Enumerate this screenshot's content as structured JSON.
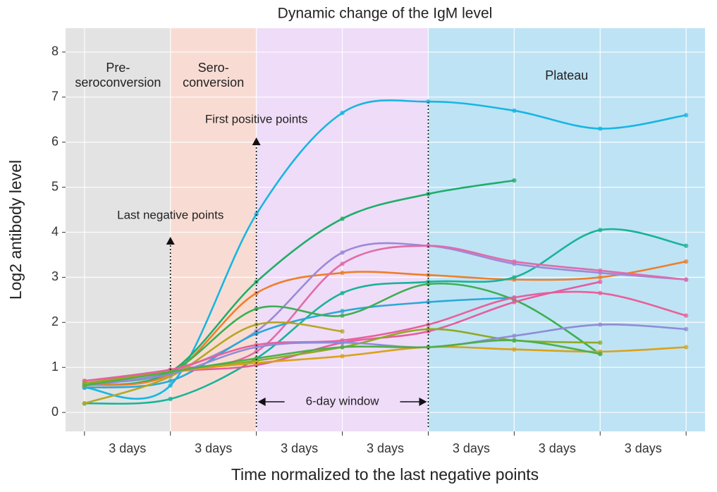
{
  "chart_data": {
    "type": "line",
    "title": "Dynamic change of the IgM level",
    "x_label": "Time normalized to the last negative points",
    "y_label": "Log2 antibody level",
    "x": [
      0,
      1,
      2,
      3,
      4,
      5,
      6,
      7
    ],
    "xlim": [
      -0.22,
      7.22
    ],
    "xticks": [
      {
        "value": 0.5,
        "label": "3 days"
      },
      {
        "value": 1.5,
        "label": "3 days"
      },
      {
        "value": 2.5,
        "label": "3 days"
      },
      {
        "value": 3.5,
        "label": "3 days"
      },
      {
        "value": 4.5,
        "label": "3 days"
      },
      {
        "value": 5.5,
        "label": "3 days"
      },
      {
        "value": 6.5,
        "label": "3 days"
      }
    ],
    "minor_xticks": [
      0,
      1,
      2,
      3,
      4,
      5,
      6,
      7
    ],
    "ylim": [
      -0.42,
      8.53
    ],
    "yticks": [
      0,
      1,
      2,
      3,
      4,
      5,
      6,
      7,
      8
    ],
    "grid": true,
    "regions": [
      {
        "label": [
          "Pre-",
          "seroconversion"
        ],
        "start": -0.22,
        "end": 1,
        "color": "#e3e3e3"
      },
      {
        "label": [
          "Sero-",
          "conversion"
        ],
        "start": 1,
        "end": 2,
        "color": "#f8dcd4"
      },
      {
        "label": [],
        "start": 2,
        "end": 4,
        "color": "#efdcf8"
      },
      {
        "label": [
          "Plateau"
        ],
        "start": 4,
        "end": 7.22,
        "color": "#bee3f5"
      }
    ],
    "annotations": [
      "Last negative points",
      "First positive points",
      "6-day window"
    ],
    "series": [
      {
        "color": "#18b6e2",
        "values": [
          0.55,
          0.6,
          4.4,
          6.65,
          6.9,
          6.7,
          6.3,
          6.6
        ]
      },
      {
        "color": "#1fae6a",
        "values": [
          0.6,
          0.9,
          2.9,
          4.3,
          4.85,
          5.15,
          null,
          null
        ]
      },
      {
        "color": "#ee7f2a",
        "values": [
          0.6,
          0.85,
          2.65,
          3.1,
          3.05,
          2.95,
          3.0,
          3.35
        ]
      },
      {
        "color": "#19b39a",
        "values": [
          0.2,
          0.3,
          1.2,
          2.65,
          2.9,
          3.0,
          4.05,
          3.7
        ]
      },
      {
        "color": "#9b8ad6",
        "values": [
          0.6,
          0.9,
          1.8,
          3.55,
          3.7,
          3.3,
          3.1,
          2.95
        ]
      },
      {
        "color": "#e06ca8",
        "values": [
          0.7,
          0.95,
          1.35,
          3.3,
          3.7,
          3.35,
          3.15,
          2.95
        ]
      },
      {
        "color": "#2aa9d6",
        "values": [
          0.55,
          0.7,
          1.75,
          2.25,
          2.45,
          2.55,
          null,
          null
        ]
      },
      {
        "color": "#3cb050",
        "values": [
          0.65,
          0.9,
          2.3,
          2.15,
          2.85,
          2.5,
          1.3,
          null
        ]
      },
      {
        "color": "#b5a722",
        "values": [
          0.2,
          0.8,
          1.95,
          1.8,
          null,
          null,
          null,
          null
        ]
      },
      {
        "color": "#e8609a",
        "values": [
          0.7,
          0.95,
          1.5,
          1.6,
          1.95,
          2.55,
          2.65,
          2.15
        ]
      },
      {
        "color": "#e55c9e",
        "values": [
          0.6,
          0.9,
          1.05,
          1.55,
          1.8,
          2.45,
          2.9,
          null
        ]
      },
      {
        "color": "#8faa22",
        "values": [
          0.65,
          0.9,
          1.15,
          1.45,
          1.85,
          1.6,
          1.55,
          null
        ]
      },
      {
        "color": "#8d8cd8",
        "values": [
          0.6,
          0.85,
          1.45,
          1.55,
          1.45,
          1.7,
          1.95,
          1.85
        ]
      },
      {
        "color": "#d9a21a",
        "values": [
          0.6,
          0.9,
          1.1,
          1.25,
          1.45,
          1.4,
          1.35,
          1.45
        ]
      },
      {
        "color": "#4daf4a",
        "values": [
          0.6,
          0.9,
          1.2,
          1.45,
          1.45,
          1.6,
          1.3,
          null
        ]
      }
    ]
  }
}
